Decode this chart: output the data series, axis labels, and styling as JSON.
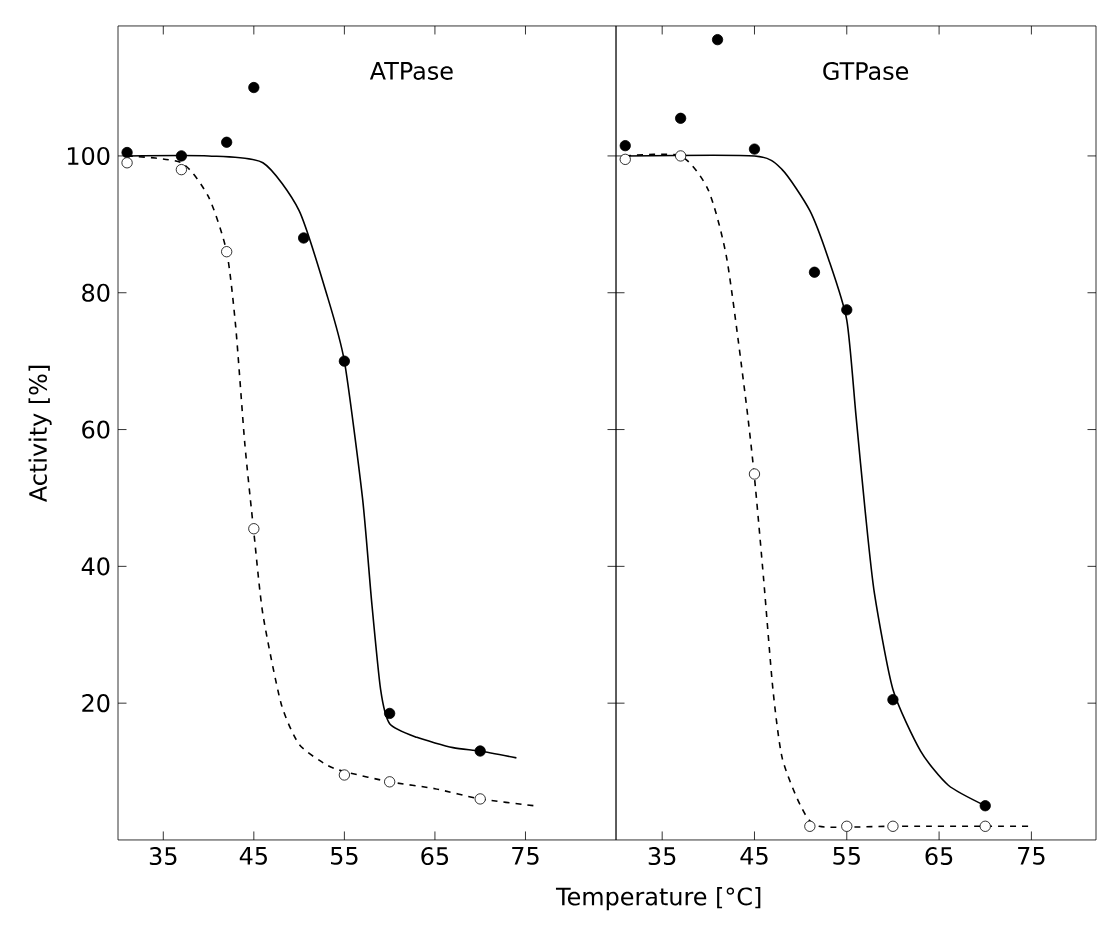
{
  "chart_data": [
    {
      "type": "scatter",
      "title": "ATPase",
      "ylabel": "Activity [%]",
      "xlim": [
        30,
        85
      ],
      "ylim": [
        0,
        119
      ],
      "xticks": [
        35,
        45,
        55,
        65,
        75
      ],
      "yticks": [
        20,
        40,
        60,
        80,
        100
      ],
      "series": [
        {
          "type": "scatter",
          "marker": "circle",
          "color": "#000000",
          "x": [
            31,
            37,
            42,
            45,
            50.5,
            55,
            60,
            70
          ],
          "values": [
            100.5,
            100,
            102,
            110,
            88,
            70,
            18.5,
            13
          ]
        },
        {
          "type": "scatter",
          "marker": "circle",
          "color": "#ffffff",
          "x": [
            31,
            37,
            42,
            45,
            55,
            60,
            70
          ],
          "values": [
            99,
            98,
            86,
            45.5,
            9.5,
            8.5,
            6
          ]
        },
        {
          "type": "line",
          "marker": "none",
          "color": "#000000",
          "line_style": "solid",
          "x": [
            31,
            40,
            46,
            50,
            53,
            55,
            57,
            58,
            59,
            60,
            63,
            67,
            70,
            74
          ],
          "values": [
            100,
            100,
            99,
            92,
            80,
            70,
            50,
            35,
            22,
            17,
            15,
            13.5,
            13,
            12
          ]
        },
        {
          "type": "line",
          "marker": "none",
          "color": "#000000",
          "line_style": "dashed",
          "x": [
            31,
            37,
            40,
            42,
            43,
            44,
            45,
            46,
            48,
            50,
            53,
            55,
            60,
            65,
            70,
            76
          ],
          "values": [
            100,
            99,
            94,
            86,
            75,
            58,
            45,
            33,
            20,
            14,
            11,
            10,
            8.5,
            7.5,
            6,
            5
          ]
        }
      ]
    },
    {
      "type": "scatter",
      "title": "GTPase",
      "xlabel": "Temperature [°C]",
      "xlim": [
        30,
        82
      ],
      "ylim": [
        0,
        119
      ],
      "xticks": [
        35,
        45,
        55,
        65,
        75
      ],
      "yticks": [
        20,
        40,
        60,
        80,
        100
      ],
      "tick_labels": "x",
      "series": [
        {
          "type": "scatter",
          "marker": "circle",
          "color": "#000000",
          "x": [
            31,
            37,
            41,
            45,
            51.5,
            55,
            60,
            70
          ],
          "values": [
            101.5,
            105.5,
            117,
            101,
            83,
            77.5,
            20.5,
            5
          ]
        },
        {
          "type": "scatter",
          "marker": "circle",
          "color": "#ffffff",
          "x": [
            31,
            37,
            45,
            51,
            55,
            60,
            70
          ],
          "values": [
            99.5,
            100,
            53.5,
            2,
            2,
            2,
            2
          ]
        },
        {
          "type": "line",
          "marker": "none",
          "color": "#000000",
          "line_style": "solid",
          "x": [
            31,
            45,
            48,
            51,
            53,
            55,
            56,
            57,
            58,
            60,
            63,
            66,
            70
          ],
          "values": [
            100,
            100,
            98,
            92,
            85,
            76,
            62,
            48,
            36,
            22,
            13,
            8,
            5
          ]
        },
        {
          "type": "line",
          "marker": "none",
          "color": "#000000",
          "line_style": "dashed",
          "x": [
            31,
            37,
            40,
            42,
            44,
            45,
            46,
            47,
            48,
            50,
            52,
            60,
            75
          ],
          "values": [
            100,
            100,
            95,
            85,
            65,
            53,
            38,
            22,
            12,
            5,
            2,
            2,
            2
          ]
        }
      ]
    }
  ]
}
